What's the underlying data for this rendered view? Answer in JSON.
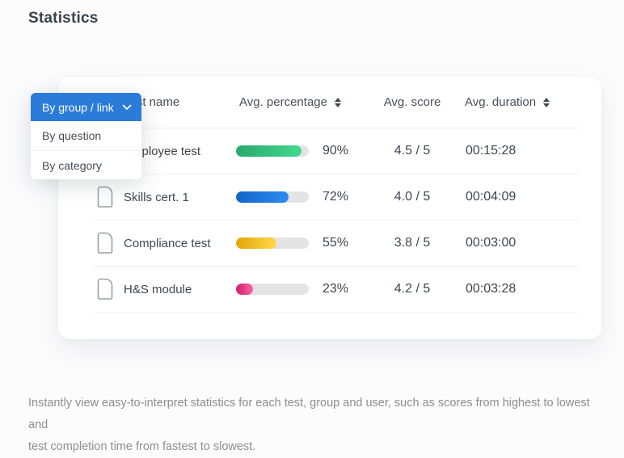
{
  "page": {
    "title": "Statistics",
    "description_lines": [
      "Instantly view easy-to-interpret statistics for each test, group and user, such as scores from highest to lowest and",
      "test completion time from fastest to slowest."
    ]
  },
  "filter_dropdown": {
    "selected": "By group / link",
    "options": [
      "By question",
      "By category"
    ],
    "accent_color": "#2b7cd9"
  },
  "table": {
    "columns": [
      {
        "label": "Test name",
        "sortable": false
      },
      {
        "label": "Avg. percentage",
        "sortable": true
      },
      {
        "label": "Avg. score",
        "sortable": false
      },
      {
        "label": "Avg. duration",
        "sortable": true
      }
    ],
    "track_color": "#e4e4e7",
    "rows": [
      {
        "name": "Employee test",
        "percentage": 90,
        "percentage_label": "90%",
        "score": "4.5 / 5",
        "duration": "00:15:28",
        "bar_from": "#2aa86c",
        "bar_to": "#43d98e"
      },
      {
        "name": "Skills cert. 1",
        "percentage": 72,
        "percentage_label": "72%",
        "score": "4.0 / 5",
        "duration": "00:04:09",
        "bar_from": "#1465c6",
        "bar_to": "#2e8cf0"
      },
      {
        "name": "Compliance test",
        "percentage": 55,
        "percentage_label": "55%",
        "score": "3.8 / 5",
        "duration": "00:03:00",
        "bar_from": "#e2a608",
        "bar_to": "#ffd84a"
      },
      {
        "name": "H&S module",
        "percentage": 23,
        "percentage_label": "23%",
        "score": "4.2 / 5",
        "duration": "00:03:28",
        "bar_from": "#d11e6f",
        "bar_to": "#fa63a4"
      }
    ]
  }
}
